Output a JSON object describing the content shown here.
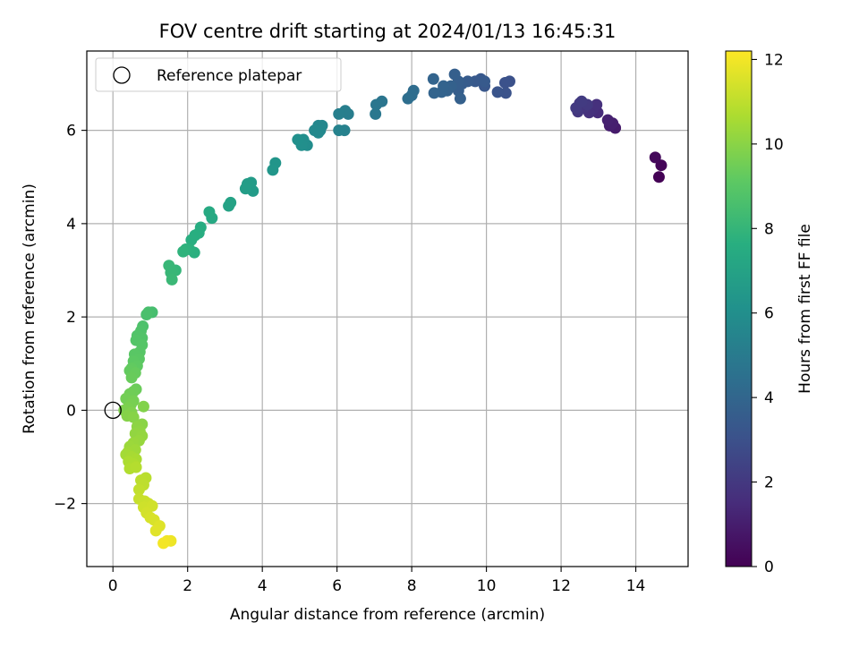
{
  "chart_data": {
    "type": "scatter",
    "title": "FOV centre drift starting at 2024/01/13 16:45:31",
    "xlabel": "Angular distance from reference (arcmin)",
    "ylabel": "Rotation from reference (arcmin)",
    "xlim": [
      -0.7,
      15.4
    ],
    "ylim": [
      -3.35,
      7.7
    ],
    "xticks": [
      0,
      2,
      4,
      6,
      8,
      10,
      12,
      14
    ],
    "yticks": [
      -2,
      0,
      2,
      4,
      6
    ],
    "xtick_labels": [
      "0",
      "2",
      "4",
      "6",
      "8",
      "10",
      "12",
      "14"
    ],
    "ytick_labels": [
      "−2",
      "0",
      "2",
      "4",
      "6"
    ],
    "grid": true,
    "legend": {
      "position": "top-left",
      "entries": [
        {
          "label": "Reference platepar",
          "marker": "open-circle"
        }
      ]
    },
    "reference_point": {
      "x": 0,
      "y": 0
    },
    "colorbar": {
      "label": "Hours from first FF file",
      "colormap": "viridis",
      "range": [
        0,
        12.2
      ],
      "ticks": [
        0,
        2,
        4,
        6,
        8,
        10,
        12
      ],
      "tick_labels": [
        "0",
        "2",
        "4",
        "6",
        "8",
        "10",
        "12"
      ]
    },
    "series": [
      {
        "points": [
          {
            "x": 14.62,
            "y": 5.0,
            "c": 0.05
          },
          {
            "x": 14.68,
            "y": 5.25,
            "c": 0.15
          },
          {
            "x": 14.52,
            "y": 5.42,
            "c": 0.25
          },
          {
            "x": 13.45,
            "y": 6.05,
            "c": 0.9
          },
          {
            "x": 13.3,
            "y": 6.1,
            "c": 1.0
          },
          {
            "x": 13.38,
            "y": 6.15,
            "c": 1.05
          },
          {
            "x": 13.25,
            "y": 6.22,
            "c": 1.1
          },
          {
            "x": 12.98,
            "y": 6.38,
            "c": 1.5
          },
          {
            "x": 12.85,
            "y": 6.45,
            "c": 1.6
          },
          {
            "x": 12.75,
            "y": 6.38,
            "c": 1.7
          },
          {
            "x": 12.95,
            "y": 6.55,
            "c": 1.7
          },
          {
            "x": 12.62,
            "y": 6.5,
            "c": 1.8
          },
          {
            "x": 12.5,
            "y": 6.58,
            "c": 1.9
          },
          {
            "x": 12.45,
            "y": 6.4,
            "c": 1.95
          },
          {
            "x": 12.7,
            "y": 6.55,
            "c": 2.0
          },
          {
            "x": 12.4,
            "y": 6.48,
            "c": 2.05
          },
          {
            "x": 12.55,
            "y": 6.62,
            "c": 2.1
          },
          {
            "x": 10.62,
            "y": 7.05,
            "c": 3.0
          },
          {
            "x": 10.5,
            "y": 7.02,
            "c": 3.05
          },
          {
            "x": 10.52,
            "y": 6.8,
            "c": 3.1
          },
          {
            "x": 10.3,
            "y": 6.82,
            "c": 3.15
          },
          {
            "x": 9.95,
            "y": 6.95,
            "c": 3.3
          },
          {
            "x": 9.85,
            "y": 7.1,
            "c": 3.35
          },
          {
            "x": 9.7,
            "y": 7.05,
            "c": 3.4
          },
          {
            "x": 9.95,
            "y": 7.05,
            "c": 3.45
          },
          {
            "x": 9.5,
            "y": 7.05,
            "c": 3.5
          },
          {
            "x": 9.35,
            "y": 7.0,
            "c": 3.55
          },
          {
            "x": 9.25,
            "y": 6.85,
            "c": 3.6
          },
          {
            "x": 9.25,
            "y": 7.05,
            "c": 3.6
          },
          {
            "x": 9.15,
            "y": 7.2,
            "c": 3.65
          },
          {
            "x": 9.3,
            "y": 6.68,
            "c": 3.7
          },
          {
            "x": 9.05,
            "y": 6.95,
            "c": 3.75
          },
          {
            "x": 8.95,
            "y": 6.85,
            "c": 3.8
          },
          {
            "x": 8.8,
            "y": 6.82,
            "c": 3.85
          },
          {
            "x": 8.85,
            "y": 6.95,
            "c": 3.85
          },
          {
            "x": 8.6,
            "y": 6.8,
            "c": 3.9
          },
          {
            "x": 8.58,
            "y": 7.1,
            "c": 3.9
          },
          {
            "x": 8.05,
            "y": 6.85,
            "c": 4.3
          },
          {
            "x": 8.0,
            "y": 6.75,
            "c": 4.35
          },
          {
            "x": 7.9,
            "y": 6.68,
            "c": 4.4
          },
          {
            "x": 7.2,
            "y": 6.62,
            "c": 4.7
          },
          {
            "x": 7.05,
            "y": 6.55,
            "c": 4.75
          },
          {
            "x": 7.03,
            "y": 6.35,
            "c": 4.8
          },
          {
            "x": 6.3,
            "y": 6.35,
            "c": 5.1
          },
          {
            "x": 6.22,
            "y": 6.42,
            "c": 5.15
          },
          {
            "x": 6.05,
            "y": 6.35,
            "c": 5.2
          },
          {
            "x": 6.2,
            "y": 6.0,
            "c": 5.3
          },
          {
            "x": 6.05,
            "y": 6.0,
            "c": 5.35
          },
          {
            "x": 5.6,
            "y": 6.1,
            "c": 5.6
          },
          {
            "x": 5.5,
            "y": 6.1,
            "c": 5.6
          },
          {
            "x": 5.55,
            "y": 6.0,
            "c": 5.65
          },
          {
            "x": 5.4,
            "y": 6.0,
            "c": 5.7
          },
          {
            "x": 5.5,
            "y": 5.95,
            "c": 5.7
          },
          {
            "x": 5.2,
            "y": 5.68,
            "c": 5.9
          },
          {
            "x": 5.1,
            "y": 5.8,
            "c": 5.95
          },
          {
            "x": 5.05,
            "y": 5.68,
            "c": 6.0
          },
          {
            "x": 4.95,
            "y": 5.8,
            "c": 6.05
          },
          {
            "x": 4.35,
            "y": 5.3,
            "c": 6.3
          },
          {
            "x": 4.28,
            "y": 5.15,
            "c": 6.35
          },
          {
            "x": 3.75,
            "y": 4.7,
            "c": 6.6
          },
          {
            "x": 3.7,
            "y": 4.88,
            "c": 6.65
          },
          {
            "x": 3.6,
            "y": 4.85,
            "c": 6.7
          },
          {
            "x": 3.55,
            "y": 4.75,
            "c": 6.75
          },
          {
            "x": 3.15,
            "y": 4.45,
            "c": 7.0
          },
          {
            "x": 3.1,
            "y": 4.38,
            "c": 7.0
          },
          {
            "x": 2.65,
            "y": 4.12,
            "c": 7.3
          },
          {
            "x": 2.58,
            "y": 4.25,
            "c": 7.35
          },
          {
            "x": 2.35,
            "y": 3.92,
            "c": 7.5
          },
          {
            "x": 2.3,
            "y": 3.8,
            "c": 7.55
          },
          {
            "x": 2.2,
            "y": 3.75,
            "c": 7.6
          },
          {
            "x": 2.1,
            "y": 3.65,
            "c": 7.65
          },
          {
            "x": 2.18,
            "y": 3.38,
            "c": 7.7
          },
          {
            "x": 2.05,
            "y": 3.45,
            "c": 7.75
          },
          {
            "x": 1.95,
            "y": 3.45,
            "c": 7.8
          },
          {
            "x": 1.88,
            "y": 3.4,
            "c": 7.85
          },
          {
            "x": 1.68,
            "y": 3.0,
            "c": 8.0
          },
          {
            "x": 1.6,
            "y": 2.98,
            "c": 8.05
          },
          {
            "x": 1.55,
            "y": 2.95,
            "c": 8.1
          },
          {
            "x": 1.5,
            "y": 3.1,
            "c": 8.1
          },
          {
            "x": 1.58,
            "y": 2.8,
            "c": 8.15
          },
          {
            "x": 1.05,
            "y": 2.1,
            "c": 8.5
          },
          {
            "x": 0.95,
            "y": 2.1,
            "c": 8.55
          },
          {
            "x": 0.9,
            "y": 2.05,
            "c": 8.6
          },
          {
            "x": 0.8,
            "y": 1.8,
            "c": 8.7
          },
          {
            "x": 0.75,
            "y": 1.7,
            "c": 8.75
          },
          {
            "x": 0.78,
            "y": 1.55,
            "c": 8.8
          },
          {
            "x": 0.65,
            "y": 1.6,
            "c": 8.8
          },
          {
            "x": 0.62,
            "y": 1.5,
            "c": 8.85
          },
          {
            "x": 0.78,
            "y": 1.4,
            "c": 8.9
          },
          {
            "x": 0.72,
            "y": 1.25,
            "c": 8.95
          },
          {
            "x": 0.58,
            "y": 1.2,
            "c": 9.0
          },
          {
            "x": 0.7,
            "y": 1.1,
            "c": 9.05
          },
          {
            "x": 0.55,
            "y": 1.05,
            "c": 9.1
          },
          {
            "x": 0.65,
            "y": 0.95,
            "c": 9.15
          },
          {
            "x": 0.5,
            "y": 0.9,
            "c": 9.2
          },
          {
            "x": 0.45,
            "y": 0.85,
            "c": 9.25
          },
          {
            "x": 0.6,
            "y": 0.8,
            "c": 9.3
          },
          {
            "x": 0.5,
            "y": 0.7,
            "c": 9.35
          },
          {
            "x": 0.62,
            "y": 0.45,
            "c": 9.4
          },
          {
            "x": 0.55,
            "y": 0.4,
            "c": 9.45
          },
          {
            "x": 0.45,
            "y": 0.35,
            "c": 9.5
          },
          {
            "x": 0.35,
            "y": 0.25,
            "c": 9.55
          },
          {
            "x": 0.55,
            "y": 0.2,
            "c": 9.6
          },
          {
            "x": 0.48,
            "y": 0.12,
            "c": 9.65
          },
          {
            "x": 0.4,
            "y": 0.05,
            "c": 9.7
          },
          {
            "x": 0.3,
            "y": 0.0,
            "c": 9.75
          },
          {
            "x": 0.5,
            "y": -0.05,
            "c": 9.8
          },
          {
            "x": 0.82,
            "y": 0.08,
            "c": 9.85
          },
          {
            "x": 0.38,
            "y": -0.12,
            "c": 9.9
          },
          {
            "x": 0.55,
            "y": -0.15,
            "c": 9.95
          },
          {
            "x": 0.78,
            "y": -0.3,
            "c": 10.0
          },
          {
            "x": 0.65,
            "y": -0.35,
            "c": 10.05
          },
          {
            "x": 0.72,
            "y": -0.45,
            "c": 10.1
          },
          {
            "x": 0.6,
            "y": -0.5,
            "c": 10.15
          },
          {
            "x": 0.78,
            "y": -0.55,
            "c": 10.2
          },
          {
            "x": 0.7,
            "y": -0.65,
            "c": 10.25
          },
          {
            "x": 0.55,
            "y": -0.7,
            "c": 10.3
          },
          {
            "x": 0.45,
            "y": -0.78,
            "c": 10.35
          },
          {
            "x": 0.6,
            "y": -0.85,
            "c": 10.4
          },
          {
            "x": 0.4,
            "y": -0.9,
            "c": 10.45
          },
          {
            "x": 0.35,
            "y": -0.95,
            "c": 10.5
          },
          {
            "x": 0.5,
            "y": -1.0,
            "c": 10.55
          },
          {
            "x": 0.62,
            "y": -1.05,
            "c": 10.6
          },
          {
            "x": 0.42,
            "y": -1.1,
            "c": 10.65
          },
          {
            "x": 0.55,
            "y": -1.15,
            "c": 10.7
          },
          {
            "x": 0.45,
            "y": -1.25,
            "c": 10.75
          },
          {
            "x": 0.62,
            "y": -1.22,
            "c": 10.8
          },
          {
            "x": 0.88,
            "y": -1.45,
            "c": 10.9
          },
          {
            "x": 0.75,
            "y": -1.5,
            "c": 10.95
          },
          {
            "x": 0.82,
            "y": -1.6,
            "c": 11.0
          },
          {
            "x": 0.7,
            "y": -1.7,
            "c": 11.05
          },
          {
            "x": 0.7,
            "y": -1.9,
            "c": 11.15
          },
          {
            "x": 0.85,
            "y": -1.95,
            "c": 11.2
          },
          {
            "x": 0.95,
            "y": -2.0,
            "c": 11.25
          },
          {
            "x": 0.82,
            "y": -2.08,
            "c": 11.3
          },
          {
            "x": 1.05,
            "y": -2.05,
            "c": 11.35
          },
          {
            "x": 0.9,
            "y": -2.2,
            "c": 11.4
          },
          {
            "x": 1.0,
            "y": -2.3,
            "c": 11.45
          },
          {
            "x": 1.1,
            "y": -2.35,
            "c": 11.5
          },
          {
            "x": 1.25,
            "y": -2.48,
            "c": 11.6
          },
          {
            "x": 1.15,
            "y": -2.58,
            "c": 11.65
          },
          {
            "x": 1.55,
            "y": -2.8,
            "c": 11.9
          },
          {
            "x": 1.45,
            "y": -2.8,
            "c": 11.95
          },
          {
            "x": 1.35,
            "y": -2.85,
            "c": 12.0
          }
        ]
      }
    ]
  }
}
